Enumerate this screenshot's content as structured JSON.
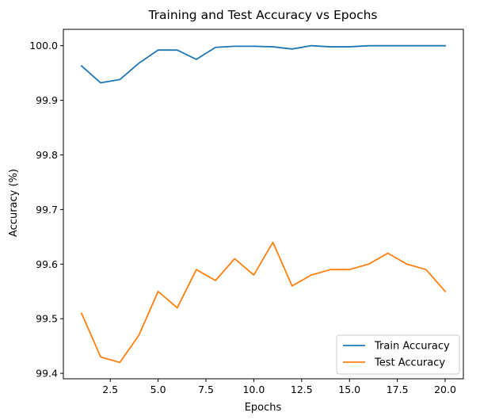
{
  "chart_data": {
    "type": "line",
    "title": "Training and Test Accuracy vs Epochs",
    "xlabel": "Epochs",
    "ylabel": "Accuracy (%)",
    "x": [
      1,
      2,
      3,
      4,
      5,
      6,
      7,
      8,
      9,
      10,
      11,
      12,
      13,
      14,
      15,
      16,
      17,
      18,
      19,
      20
    ],
    "xlim": [
      0.05,
      20.95
    ],
    "ylim": [
      99.39,
      100.03
    ],
    "xticks": [
      2.5,
      5.0,
      7.5,
      10.0,
      12.5,
      15.0,
      17.5,
      20.0
    ],
    "xtick_labels": [
      "2.5",
      "5.0",
      "7.5",
      "10.0",
      "12.5",
      "15.0",
      "17.5",
      "20.0"
    ],
    "yticks": [
      99.4,
      99.5,
      99.6,
      99.7,
      99.8,
      99.9,
      100.0
    ],
    "ytick_labels": [
      "99.4",
      "99.5",
      "99.6",
      "99.7",
      "99.8",
      "99.9",
      "100.0"
    ],
    "grid": false,
    "legend_position": "lower-right",
    "series": [
      {
        "name": "Train Accuracy",
        "color": "#1f77b4",
        "values": [
          99.963,
          99.932,
          99.938,
          99.968,
          99.992,
          99.992,
          99.975,
          99.997,
          99.999,
          99.999,
          99.998,
          99.994,
          100.0,
          99.998,
          99.998,
          100.0,
          100.0,
          100.0,
          100.0,
          100.0
        ]
      },
      {
        "name": "Test Accuracy",
        "color": "#ff7f0e",
        "values": [
          99.51,
          99.43,
          99.42,
          99.47,
          99.55,
          99.52,
          99.59,
          99.57,
          99.61,
          99.58,
          99.64,
          99.56,
          99.58,
          99.59,
          99.59,
          99.6,
          99.62,
          99.6,
          99.59,
          99.55
        ]
      }
    ]
  }
}
